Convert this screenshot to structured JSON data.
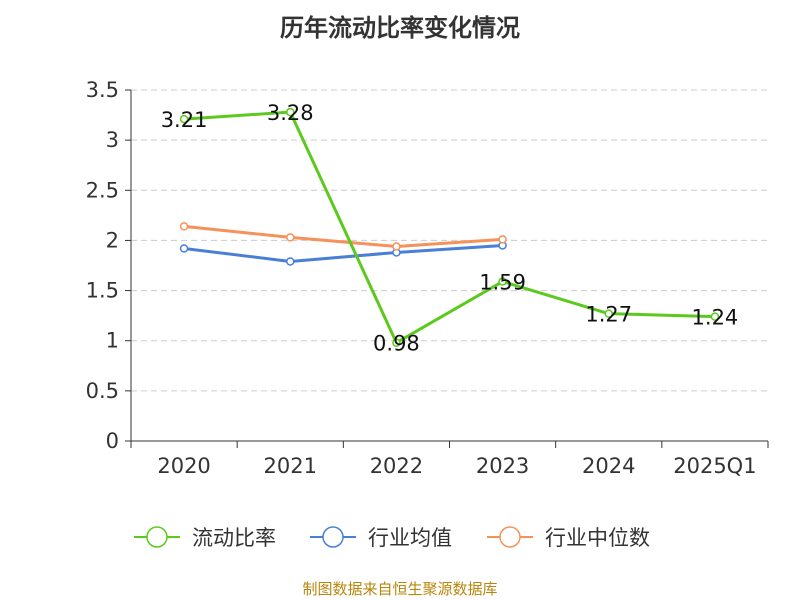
{
  "chart_data": {
    "type": "line",
    "title": "历年流动比率变化情况",
    "categories": [
      "2020",
      "2021",
      "2022",
      "2023",
      "2024",
      "2025Q1"
    ],
    "ylim": [
      0,
      3.5
    ],
    "yticks": [
      "0",
      "0.5",
      "1",
      "1.5",
      "2",
      "2.5",
      "3",
      "3.5"
    ],
    "grid": true,
    "legend_position": "bottom",
    "series": [
      {
        "name": "流动比率",
        "color": "#5cc91e",
        "values": [
          3.21,
          3.28,
          0.98,
          1.59,
          1.27,
          1.24
        ],
        "labels": [
          "3.21",
          "3.28",
          "0.98",
          "1.59",
          "1.27",
          "1.24"
        ]
      },
      {
        "name": "行业均值",
        "color": "#4a7fd6",
        "values": [
          1.92,
          1.79,
          1.88,
          1.95,
          null,
          null
        ]
      },
      {
        "name": "行业中位数",
        "color": "#f5915a",
        "values": [
          2.14,
          2.03,
          1.94,
          2.01,
          null,
          null
        ]
      }
    ]
  },
  "source": "制图数据来自恒生聚源数据库"
}
